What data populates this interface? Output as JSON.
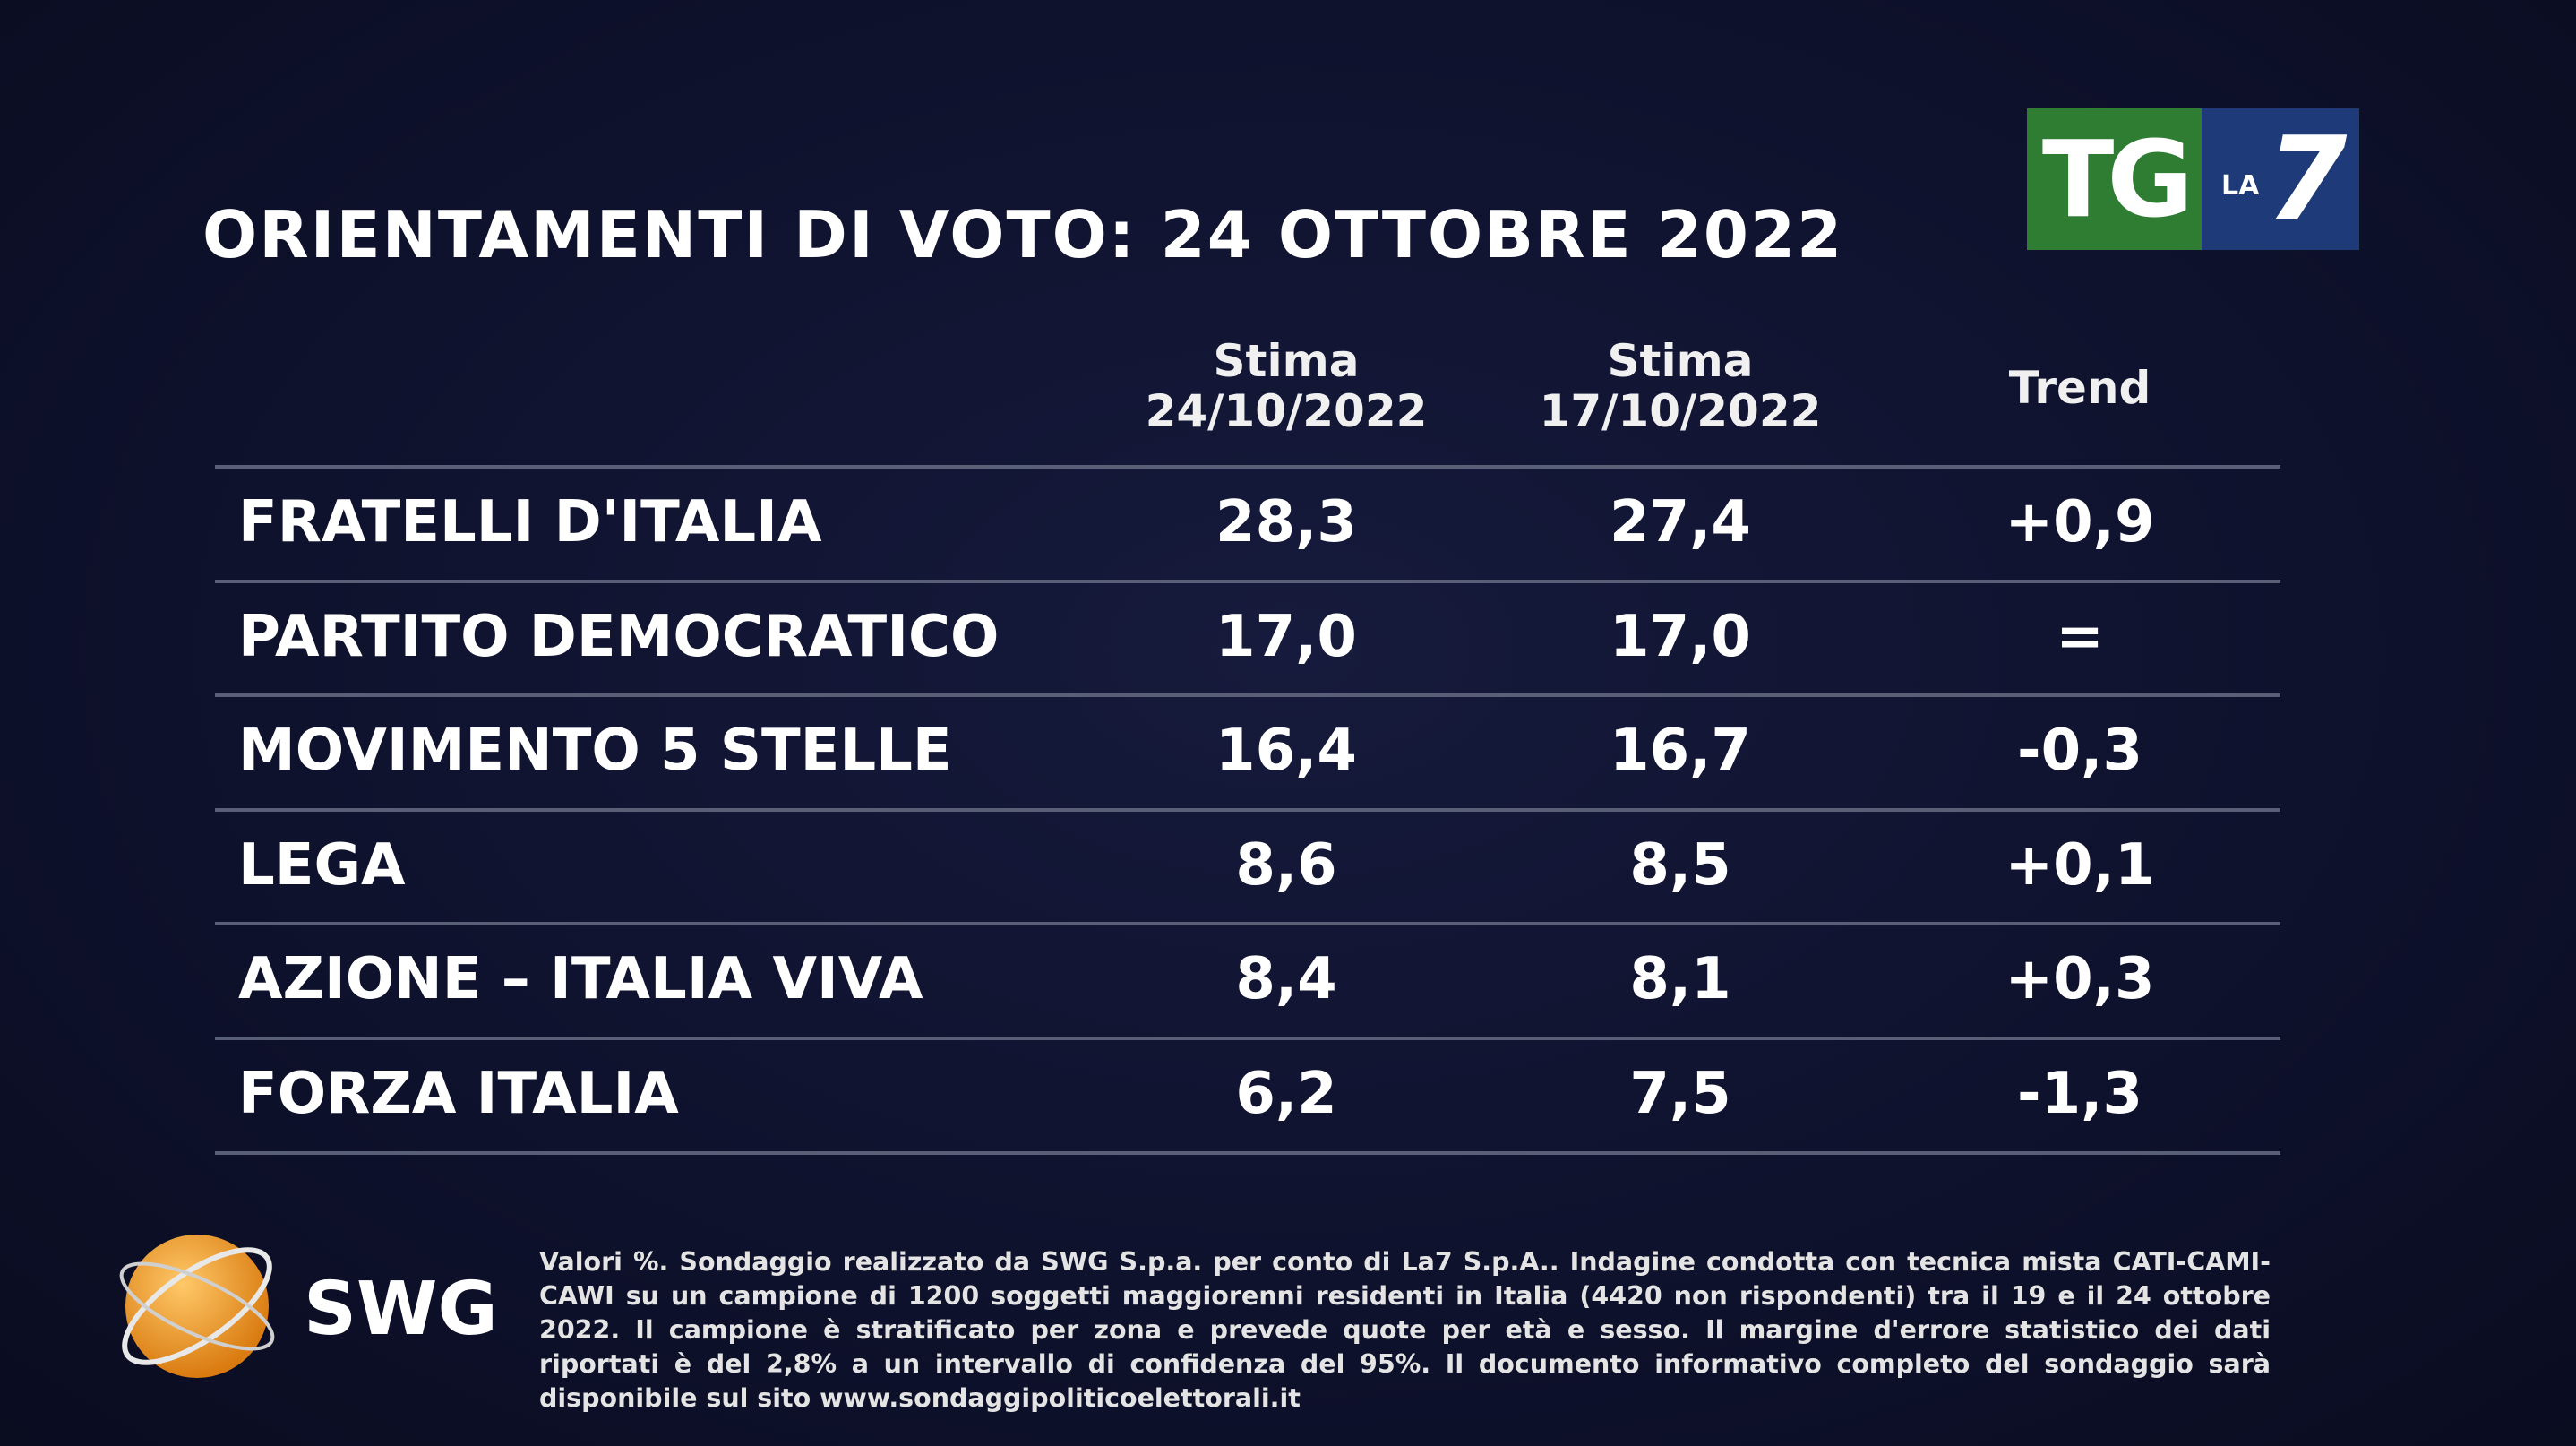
{
  "title": "ORIENTAMENTI DI VOTO: 24 OTTOBRE 2022",
  "logo": {
    "tg": "TG",
    "la": "LA",
    "seven": "7"
  },
  "table": {
    "headers": [
      [
        "Stima",
        "24/10/2022"
      ],
      [
        "Stima",
        "17/10/2022"
      ],
      [
        "Trend"
      ]
    ],
    "rows": [
      [
        "FRATELLI D'ITALIA",
        "28,3",
        "27,4",
        "+0,9"
      ],
      [
        "PARTITO DEMOCRATICO",
        "17,0",
        "17,0",
        "="
      ],
      [
        "MOVIMENTO 5 STELLE",
        "16,4",
        "16,7",
        "-0,3"
      ],
      [
        "LEGA",
        "8,6",
        "8,5",
        "+0,1"
      ],
      [
        "AZIONE – ITALIA VIVA",
        "8,4",
        "8,1",
        "+0,3"
      ],
      [
        "FORZA ITALIA",
        "6,2",
        "7,5",
        "-1,3"
      ]
    ]
  },
  "footer": {
    "brand": "SWG",
    "note": "Valori %. Sondaggio realizzato da SWG S.p.a. per conto di La7 S.p.A.. Indagine condotta con tecnica mista CATI-CAMI-CAWI su un campione di 1200 soggetti maggiorenni residenti in Italia (4420 non rispondenti) tra il 19 e il 24 ottobre 2022. Il campione è stratificato per zona e prevede quote per età e sesso. Il margine d'errore statistico dei dati riportati è del 2,8% a un intervallo di confidenza del 95%. Il documento informativo completo del sondaggio sarà disponibile sul sito www.sondaggipoliticoelettorali.it"
  }
}
